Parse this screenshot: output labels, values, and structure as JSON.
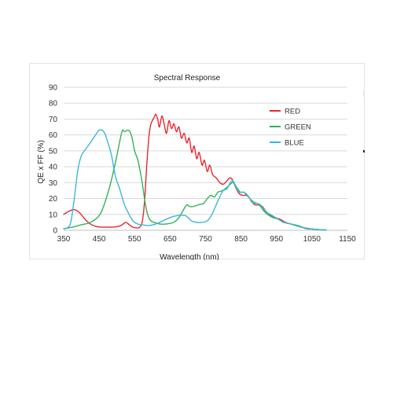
{
  "colors": {
    "red": "#e8282f",
    "green": "#33b257",
    "blue": "#3cb6dc",
    "grid": "#d9d9d9",
    "text": "#333333"
  },
  "chart_data": {
    "type": "line",
    "title": "Spectral Response",
    "xlabel": "Wavelength (nm)",
    "ylabel": "QE x FF (%)",
    "xlim": [
      350,
      1150
    ],
    "ylim": [
      0,
      90
    ],
    "xticks": [
      "350",
      "450",
      "550",
      "650",
      "750",
      "850",
      "950",
      "1050",
      "1150"
    ],
    "yticks": [
      "0",
      "10",
      "20",
      "30",
      "40",
      "50",
      "60",
      "70",
      "80",
      "90"
    ],
    "grid": "horizontal",
    "legend_position": "top-right",
    "series": [
      {
        "name": "RED",
        "color": "#e8282f",
        "points": [
          [
            350,
            10
          ],
          [
            365,
            12
          ],
          [
            380,
            13
          ],
          [
            395,
            11
          ],
          [
            410,
            7
          ],
          [
            425,
            4
          ],
          [
            440,
            2.5
          ],
          [
            455,
            2
          ],
          [
            470,
            2
          ],
          [
            490,
            2
          ],
          [
            505,
            2.5
          ],
          [
            515,
            3.5
          ],
          [
            525,
            5
          ],
          [
            535,
            3.5
          ],
          [
            545,
            2
          ],
          [
            555,
            1.5
          ],
          [
            565,
            2
          ],
          [
            572,
            6
          ],
          [
            578,
            18
          ],
          [
            584,
            40
          ],
          [
            590,
            58
          ],
          [
            595,
            66
          ],
          [
            600,
            69
          ],
          [
            605,
            71
          ],
          [
            610,
            73
          ],
          [
            615,
            70
          ],
          [
            620,
            65
          ],
          [
            627,
            72
          ],
          [
            634,
            66
          ],
          [
            640,
            61
          ],
          [
            647,
            69
          ],
          [
            654,
            64
          ],
          [
            661,
            67
          ],
          [
            668,
            62
          ],
          [
            675,
            65
          ],
          [
            682,
            58
          ],
          [
            690,
            61
          ],
          [
            697,
            55
          ],
          [
            704,
            58
          ],
          [
            711,
            49
          ],
          [
            718,
            53
          ],
          [
            725,
            45
          ],
          [
            732,
            49
          ],
          [
            740,
            41
          ],
          [
            747,
            44
          ],
          [
            755,
            37
          ],
          [
            762,
            41
          ],
          [
            770,
            35
          ],
          [
            780,
            33
          ],
          [
            790,
            30
          ],
          [
            800,
            29
          ],
          [
            810,
            31
          ],
          [
            818,
            33
          ],
          [
            825,
            32
          ],
          [
            835,
            27
          ],
          [
            845,
            23
          ],
          [
            855,
            22
          ],
          [
            865,
            22
          ],
          [
            872,
            21
          ],
          [
            880,
            18
          ],
          [
            890,
            16
          ],
          [
            900,
            16
          ],
          [
            910,
            15
          ],
          [
            920,
            12
          ],
          [
            930,
            10
          ],
          [
            945,
            8
          ],
          [
            960,
            7
          ],
          [
            975,
            5
          ],
          [
            990,
            4
          ],
          [
            1005,
            3
          ],
          [
            1020,
            2
          ],
          [
            1035,
            1
          ],
          [
            1050,
            0.8
          ],
          [
            1065,
            0.5
          ],
          [
            1080,
            0.3
          ],
          [
            1090,
            0.2
          ]
        ]
      },
      {
        "name": "GREEN",
        "color": "#33b257",
        "points": [
          [
            350,
            1
          ],
          [
            375,
            2
          ],
          [
            400,
            3.5
          ],
          [
            420,
            4.5
          ],
          [
            440,
            7
          ],
          [
            455,
            11
          ],
          [
            470,
            20
          ],
          [
            485,
            32
          ],
          [
            500,
            47
          ],
          [
            510,
            58
          ],
          [
            516,
            63
          ],
          [
            522,
            62
          ],
          [
            530,
            63
          ],
          [
            537,
            62
          ],
          [
            543,
            58
          ],
          [
            550,
            50
          ],
          [
            558,
            45
          ],
          [
            565,
            38
          ],
          [
            572,
            29
          ],
          [
            580,
            17
          ],
          [
            588,
            9
          ],
          [
            596,
            6
          ],
          [
            605,
            5
          ],
          [
            620,
            4
          ],
          [
            640,
            4
          ],
          [
            660,
            5
          ],
          [
            675,
            8
          ],
          [
            688,
            13
          ],
          [
            697,
            16
          ],
          [
            705,
            15
          ],
          [
            715,
            15
          ],
          [
            730,
            16
          ],
          [
            745,
            17
          ],
          [
            755,
            20
          ],
          [
            765,
            22
          ],
          [
            775,
            21
          ],
          [
            785,
            24
          ],
          [
            798,
            25
          ],
          [
            810,
            27
          ],
          [
            820,
            29
          ],
          [
            828,
            30
          ],
          [
            838,
            27
          ],
          [
            848,
            24
          ],
          [
            858,
            24
          ],
          [
            866,
            22
          ],
          [
            875,
            20
          ],
          [
            885,
            17
          ],
          [
            895,
            17
          ],
          [
            905,
            15
          ],
          [
            915,
            12
          ],
          [
            925,
            10
          ],
          [
            940,
            8
          ],
          [
            955,
            7
          ],
          [
            970,
            5
          ],
          [
            990,
            4
          ],
          [
            1010,
            3
          ],
          [
            1030,
            1.5
          ],
          [
            1050,
            0.8
          ],
          [
            1070,
            0.4
          ],
          [
            1090,
            0.2
          ]
        ]
      },
      {
        "name": "BLUE",
        "color": "#3cb6dc",
        "points": [
          [
            350,
            1
          ],
          [
            360,
            1.5
          ],
          [
            370,
            5
          ],
          [
            380,
            20
          ],
          [
            390,
            38
          ],
          [
            400,
            47
          ],
          [
            412,
            51
          ],
          [
            425,
            55
          ],
          [
            440,
            60
          ],
          [
            450,
            63
          ],
          [
            458,
            63
          ],
          [
            466,
            61
          ],
          [
            475,
            55
          ],
          [
            485,
            47
          ],
          [
            496,
            34
          ],
          [
            508,
            26
          ],
          [
            520,
            17
          ],
          [
            532,
            11
          ],
          [
            545,
            6
          ],
          [
            558,
            4
          ],
          [
            570,
            3.5
          ],
          [
            590,
            3
          ],
          [
            610,
            4
          ],
          [
            630,
            6
          ],
          [
            650,
            8
          ],
          [
            665,
            9
          ],
          [
            680,
            9.5
          ],
          [
            695,
            9
          ],
          [
            710,
            6
          ],
          [
            725,
            5
          ],
          [
            740,
            5
          ],
          [
            755,
            6
          ],
          [
            768,
            10
          ],
          [
            780,
            16
          ],
          [
            790,
            21
          ],
          [
            800,
            25
          ],
          [
            810,
            26
          ],
          [
            820,
            30
          ],
          [
            828,
            31
          ],
          [
            836,
            27
          ],
          [
            845,
            24
          ],
          [
            855,
            24
          ],
          [
            865,
            23
          ],
          [
            875,
            20
          ],
          [
            885,
            18
          ],
          [
            895,
            17
          ],
          [
            905,
            16
          ],
          [
            915,
            13
          ],
          [
            925,
            11
          ],
          [
            940,
            9
          ],
          [
            955,
            7
          ],
          [
            970,
            5
          ],
          [
            990,
            4
          ],
          [
            1010,
            2.5
          ],
          [
            1030,
            1.5
          ],
          [
            1050,
            0.8
          ],
          [
            1070,
            0.4
          ],
          [
            1090,
            0.2
          ]
        ]
      }
    ]
  }
}
